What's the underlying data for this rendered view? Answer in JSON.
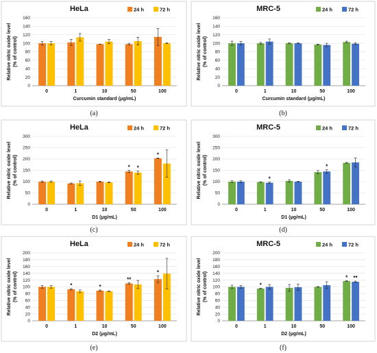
{
  "chart_data": [
    {
      "panel_label": "(a)",
      "type": "bar",
      "title": "HeLa",
      "xlabel": "Curcumin standard (μg/mL)",
      "ylabel": "Relative nitric oxide level\n(% of control)",
      "ylim": [
        0,
        160
      ],
      "yticks": [
        0,
        20,
        40,
        60,
        80,
        100,
        120,
        140,
        160
      ],
      "categories": [
        "0",
        "1",
        "10",
        "50",
        "100"
      ],
      "legend_position": "top-right",
      "grid": true,
      "series": [
        {
          "name": "24 h",
          "color": "#f07f22",
          "values": [
            100,
            102,
            98,
            98,
            115
          ],
          "errors": [
            4,
            7,
            0,
            2,
            20
          ],
          "sig": [
            "",
            "",
            "",
            "",
            ""
          ]
        },
        {
          "name": "72 h",
          "color": "#ffc000",
          "values": [
            100,
            114,
            104,
            105,
            100
          ],
          "errors": [
            4,
            9,
            5,
            9,
            1
          ],
          "sig": [
            "",
            "",
            "",
            "",
            ""
          ]
        }
      ]
    },
    {
      "panel_label": "(b)",
      "type": "bar",
      "title": "MRC-5",
      "xlabel": "Curcumin standard (μg/mL)",
      "ylabel": "Relative nitric oxide level\n(% of control)",
      "ylim": [
        0,
        160
      ],
      "yticks": [
        0,
        20,
        40,
        60,
        80,
        100,
        120,
        140,
        160
      ],
      "categories": [
        "0",
        "1",
        "10",
        "50",
        "100"
      ],
      "legend_position": "top-right",
      "grid": true,
      "series": [
        {
          "name": "24 h",
          "color": "#70ad47",
          "values": [
            100,
            100,
            100,
            97,
            103
          ],
          "errors": [
            5,
            2,
            1,
            1,
            2
          ],
          "sig": [
            "",
            "",
            "",
            "",
            ""
          ]
        },
        {
          "name": "72 h",
          "color": "#4472c4",
          "values": [
            100,
            104,
            100,
            96,
            99
          ],
          "errors": [
            4,
            6,
            1,
            4,
            2
          ],
          "sig": [
            "",
            "",
            "",
            "",
            ""
          ]
        }
      ]
    },
    {
      "panel_label": "(c)",
      "type": "bar",
      "title": "HeLa",
      "xlabel": "D1 (μg/mL)",
      "ylabel": "Relative nitric oxide level\n(% of control)",
      "ylim": [
        0,
        300
      ],
      "yticks": [
        0,
        50,
        100,
        150,
        200,
        250,
        300
      ],
      "categories": [
        "0",
        "1",
        "10",
        "50",
        "100"
      ],
      "legend_position": "top-right",
      "grid": true,
      "series": [
        {
          "name": "24 h",
          "color": "#f07f22",
          "values": [
            100,
            92,
            100,
            145,
            203
          ],
          "errors": [
            3,
            2,
            2,
            5,
            2
          ],
          "sig": [
            "",
            "",
            "",
            "*",
            "*"
          ]
        },
        {
          "name": "72 h",
          "color": "#ffc000",
          "values": [
            100,
            93,
            97,
            140,
            180
          ],
          "errors": [
            3,
            10,
            2,
            7,
            60
          ],
          "sig": [
            "",
            "",
            "",
            "*",
            ""
          ]
        }
      ]
    },
    {
      "panel_label": "(d)",
      "type": "bar",
      "title": "MRC-5",
      "xlabel": "D1 (μg/mL)",
      "ylabel": "Relative nitric oxide level\n(% of control)",
      "ylim": [
        0,
        300
      ],
      "yticks": [
        0,
        50,
        100,
        150,
        200,
        250,
        300
      ],
      "categories": [
        "0",
        "1",
        "10",
        "50",
        "100"
      ],
      "legend_position": "top-right",
      "grid": true,
      "series": [
        {
          "name": "24 h",
          "color": "#70ad47",
          "values": [
            100,
            98,
            103,
            142,
            183
          ],
          "errors": [
            4,
            2,
            5,
            7,
            2
          ],
          "sig": [
            "",
            "",
            "",
            "",
            ""
          ]
        },
        {
          "name": "72 h",
          "color": "#4472c4",
          "values": [
            100,
            95,
            100,
            145,
            185
          ],
          "errors": [
            4,
            3,
            2,
            8,
            20
          ],
          "sig": [
            "",
            "*",
            "",
            "*",
            ""
          ]
        }
      ]
    },
    {
      "panel_label": "(e)",
      "type": "bar",
      "title": "HeLa",
      "xlabel": "D2 (μg/mL)",
      "ylabel": "Relative nitric oxide level\n(% of control)",
      "ylim": [
        0,
        200
      ],
      "yticks": [
        0,
        20,
        40,
        60,
        80,
        100,
        120,
        140,
        160,
        180,
        200
      ],
      "categories": [
        "0",
        "1",
        "10",
        "50",
        "100"
      ],
      "legend_position": "top-right",
      "grid": true,
      "series": [
        {
          "name": "24 h",
          "color": "#f07f22",
          "values": [
            100,
            93,
            89,
            110,
            123
          ],
          "errors": [
            4,
            2,
            2,
            2,
            10
          ],
          "sig": [
            "",
            "*",
            "*",
            "**",
            "*"
          ]
        },
        {
          "name": "72 h",
          "color": "#ffc000",
          "values": [
            100,
            87,
            87,
            107,
            139
          ],
          "errors": [
            4,
            4,
            1,
            12,
            45
          ],
          "sig": [
            "",
            "",
            "",
            "",
            ""
          ]
        }
      ]
    },
    {
      "panel_label": "(f)",
      "type": "bar",
      "title": "MRC-5",
      "xlabel": "D2 (μg/mL)",
      "ylabel": "Relative nitric oxide level\n(% of control)",
      "ylim": [
        0,
        200
      ],
      "yticks": [
        0,
        20,
        40,
        60,
        80,
        100,
        120,
        140,
        160,
        180,
        200
      ],
      "categories": [
        "0",
        "1",
        "10",
        "50",
        "100"
      ],
      "legend_position": "top-right",
      "grid": true,
      "series": [
        {
          "name": "24 h",
          "color": "#70ad47",
          "values": [
            100,
            95,
            97,
            100,
            117
          ],
          "errors": [
            5,
            1,
            10,
            1,
            1
          ],
          "sig": [
            "",
            "*",
            "",
            "",
            "*"
          ]
        },
        {
          "name": "72 h",
          "color": "#4472c4",
          "values": [
            100,
            100,
            99,
            105,
            115
          ],
          "errors": [
            4,
            7,
            9,
            10,
            2
          ],
          "sig": [
            "",
            "",
            "",
            "",
            "**"
          ]
        }
      ]
    }
  ]
}
